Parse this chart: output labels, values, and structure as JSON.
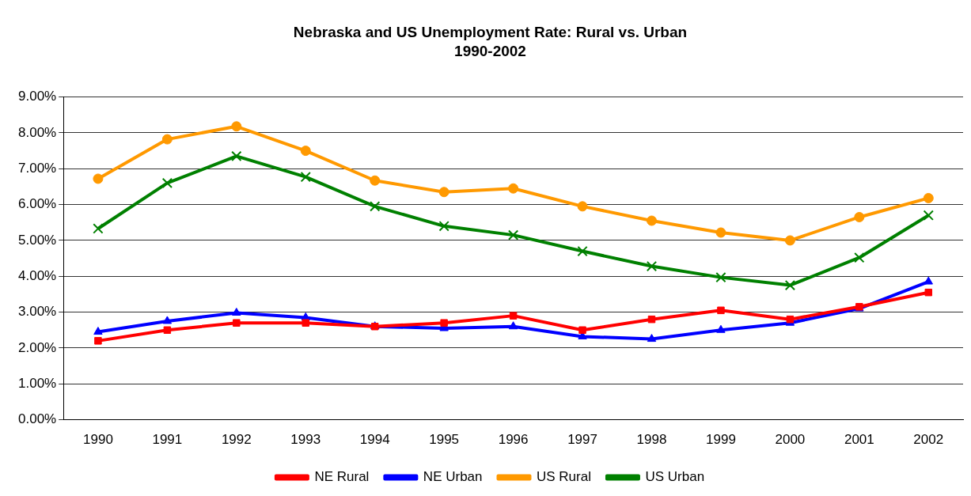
{
  "chart_data": {
    "type": "line",
    "title": "Nebraska and US Unemployment Rate: Rural vs. Urban",
    "subtitle": "1990-2002",
    "categories": [
      "1990",
      "1991",
      "1992",
      "1993",
      "1994",
      "1995",
      "1996",
      "1997",
      "1998",
      "1999",
      "2000",
      "2001",
      "2002"
    ],
    "series": [
      {
        "name": "NE Rural",
        "color": "#ff0000",
        "marker": "square",
        "values": [
          2.2,
          2.5,
          2.7,
          2.7,
          2.6,
          2.7,
          2.9,
          2.5,
          2.8,
          3.05,
          2.8,
          3.15,
          3.55
        ]
      },
      {
        "name": "NE Urban",
        "color": "#0000ff",
        "marker": "triangle",
        "values": [
          2.45,
          2.75,
          2.98,
          2.85,
          2.6,
          2.55,
          2.6,
          2.32,
          2.25,
          2.5,
          2.7,
          3.1,
          3.85
        ]
      },
      {
        "name": "US Rural",
        "color": "#ff9900",
        "marker": "circle",
        "values": [
          6.72,
          7.82,
          8.18,
          7.5,
          6.67,
          6.35,
          6.45,
          5.95,
          5.55,
          5.22,
          5.0,
          5.65,
          6.18
        ]
      },
      {
        "name": "US Urban",
        "color": "#008000",
        "marker": "cross",
        "values": [
          5.33,
          6.6,
          7.35,
          6.77,
          5.95,
          5.4,
          5.15,
          4.7,
          4.28,
          3.97,
          3.75,
          4.52,
          5.7
        ]
      }
    ],
    "ylim": [
      0,
      9
    ],
    "yticks": [
      {
        "value": 0,
        "label": "0.00%"
      },
      {
        "value": 1,
        "label": "1.00%"
      },
      {
        "value": 2,
        "label": "2.00%"
      },
      {
        "value": 3,
        "label": "3.00%"
      },
      {
        "value": 4,
        "label": "4.00%"
      },
      {
        "value": 5,
        "label": "5.00%"
      },
      {
        "value": 6,
        "label": "6.00%"
      },
      {
        "value": 7,
        "label": "7.00%"
      },
      {
        "value": 8,
        "label": "8.00%"
      },
      {
        "value": 9,
        "label": "9.00%"
      }
    ],
    "grid": "y",
    "legend": "bottom",
    "line_style": "solid"
  }
}
